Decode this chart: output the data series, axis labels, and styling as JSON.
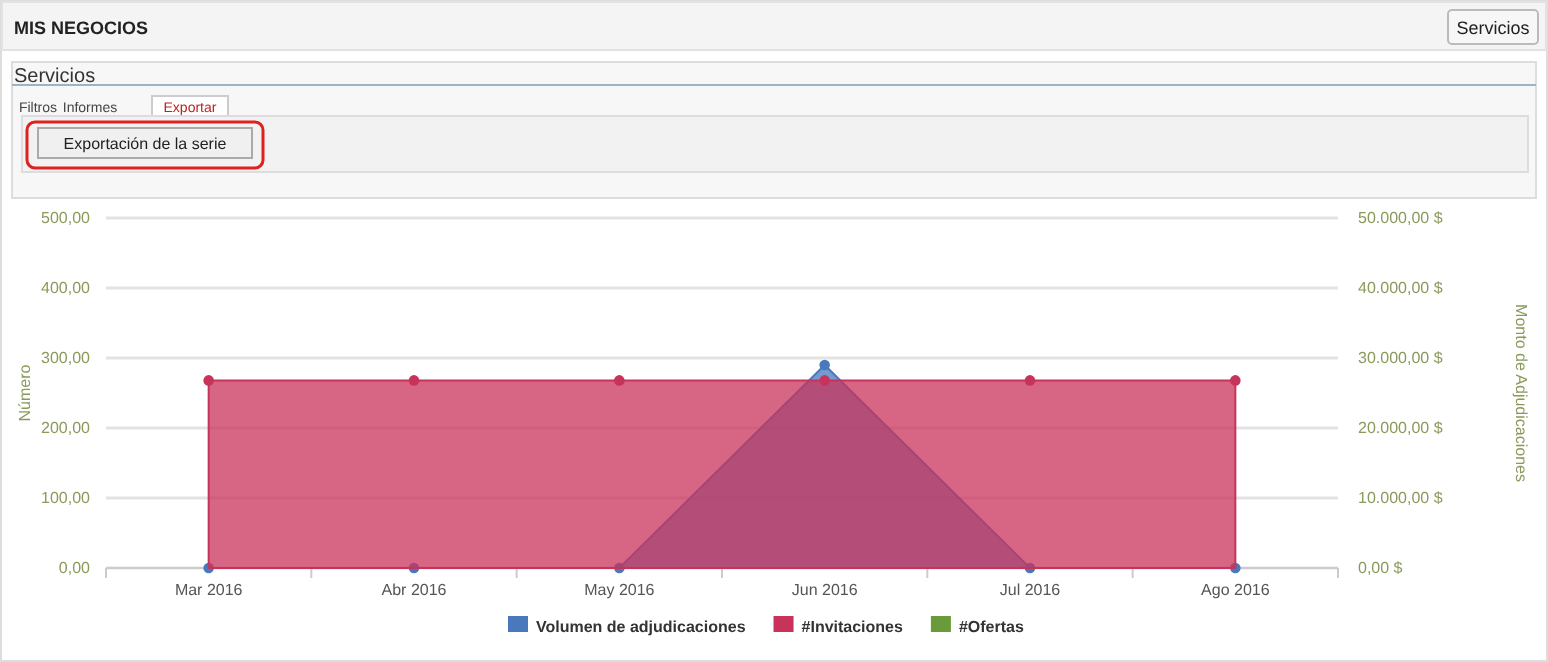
{
  "chart_data": {
    "type": "area",
    "title": "MIS NEGOCIOS",
    "subtitle": "Servicios",
    "annotations": [
      "Servicios",
      "Filtros",
      "Informes",
      "Exportar",
      "Exportación de la serie"
    ],
    "categories": [
      "Mar 2016",
      "Abr 2016",
      "May 2016",
      "Jun 2016",
      "Jul 2016",
      "Ago 2016"
    ],
    "series": [
      {
        "name": "Volumen de adjudicaciones",
        "color": "#4a78bd",
        "axis": "y2",
        "values": [
          0,
          0,
          0,
          29000,
          0,
          0
        ]
      },
      {
        "name": "#Invitaciones",
        "color": "#c8335b",
        "values": [
          268,
          268,
          268,
          268,
          268,
          268
        ]
      },
      {
        "name": "#Ofertas",
        "color": "#6a9a3a",
        "values": [
          null,
          null,
          null,
          null,
          null,
          null
        ]
      }
    ],
    "ylabel": "Número",
    "y2label": "Monto de Adjudicaciones",
    "ylim": [
      0,
      500
    ],
    "yticks": [
      {
        "value": 0,
        "label": "0,00"
      },
      {
        "value": 100,
        "label": "100,00"
      },
      {
        "value": 200,
        "label": "200,00"
      },
      {
        "value": 300,
        "label": "300,00"
      },
      {
        "value": 400,
        "label": "400,00"
      },
      {
        "value": 500,
        "label": "500,00"
      }
    ],
    "y2lim": [
      0,
      50000
    ],
    "y2ticks": [
      {
        "value": 0,
        "label": "0,00 $"
      },
      {
        "value": 10000,
        "label": "10.000,00 $"
      },
      {
        "value": 20000,
        "label": "20.000,00 $"
      },
      {
        "value": 30000,
        "label": "30.000,00 $"
      },
      {
        "value": 40000,
        "label": "40.000,00 $"
      },
      {
        "value": 50000,
        "label": "50.000,00 $"
      }
    ],
    "grid": "y",
    "legend": "bottom",
    "marker": "circle"
  }
}
